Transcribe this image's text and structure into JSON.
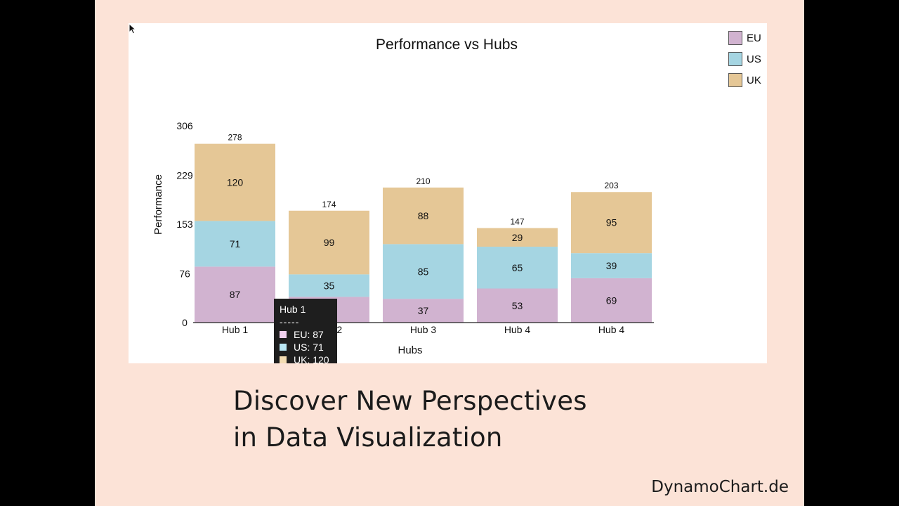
{
  "chart_data": {
    "type": "bar",
    "stacked": true,
    "title": "Performance vs Hubs",
    "xlabel": "Hubs",
    "ylabel": "Performance",
    "categories": [
      "Hub 1",
      "Hub 2",
      "Hub 3",
      "Hub 4",
      "Hub 4"
    ],
    "yticks": [
      0,
      76,
      153,
      229,
      306
    ],
    "ylim": [
      0,
      306
    ],
    "series": [
      {
        "name": "EU",
        "values": [
          87,
          40,
          37,
          53,
          69
        ],
        "color": "#d1b3d0"
      },
      {
        "name": "US",
        "values": [
          71,
          35,
          85,
          65,
          39
        ],
        "color": "#a5d5e2"
      },
      {
        "name": "UK",
        "values": [
          120,
          99,
          88,
          29,
          95
        ],
        "color": "#e5c796"
      }
    ],
    "totals": [
      278,
      174,
      210,
      147,
      203
    ],
    "legend_position": "top-right",
    "grid": false
  },
  "tooltip": {
    "title": "Hub 1",
    "separator": "-----",
    "rows": [
      "EU: 87",
      "US: 71",
      "UK: 120"
    ]
  },
  "caption": {
    "line1": "Discover New Perspectives",
    "line2": "in Data Visualization"
  },
  "brand": "DynamoChart.de"
}
